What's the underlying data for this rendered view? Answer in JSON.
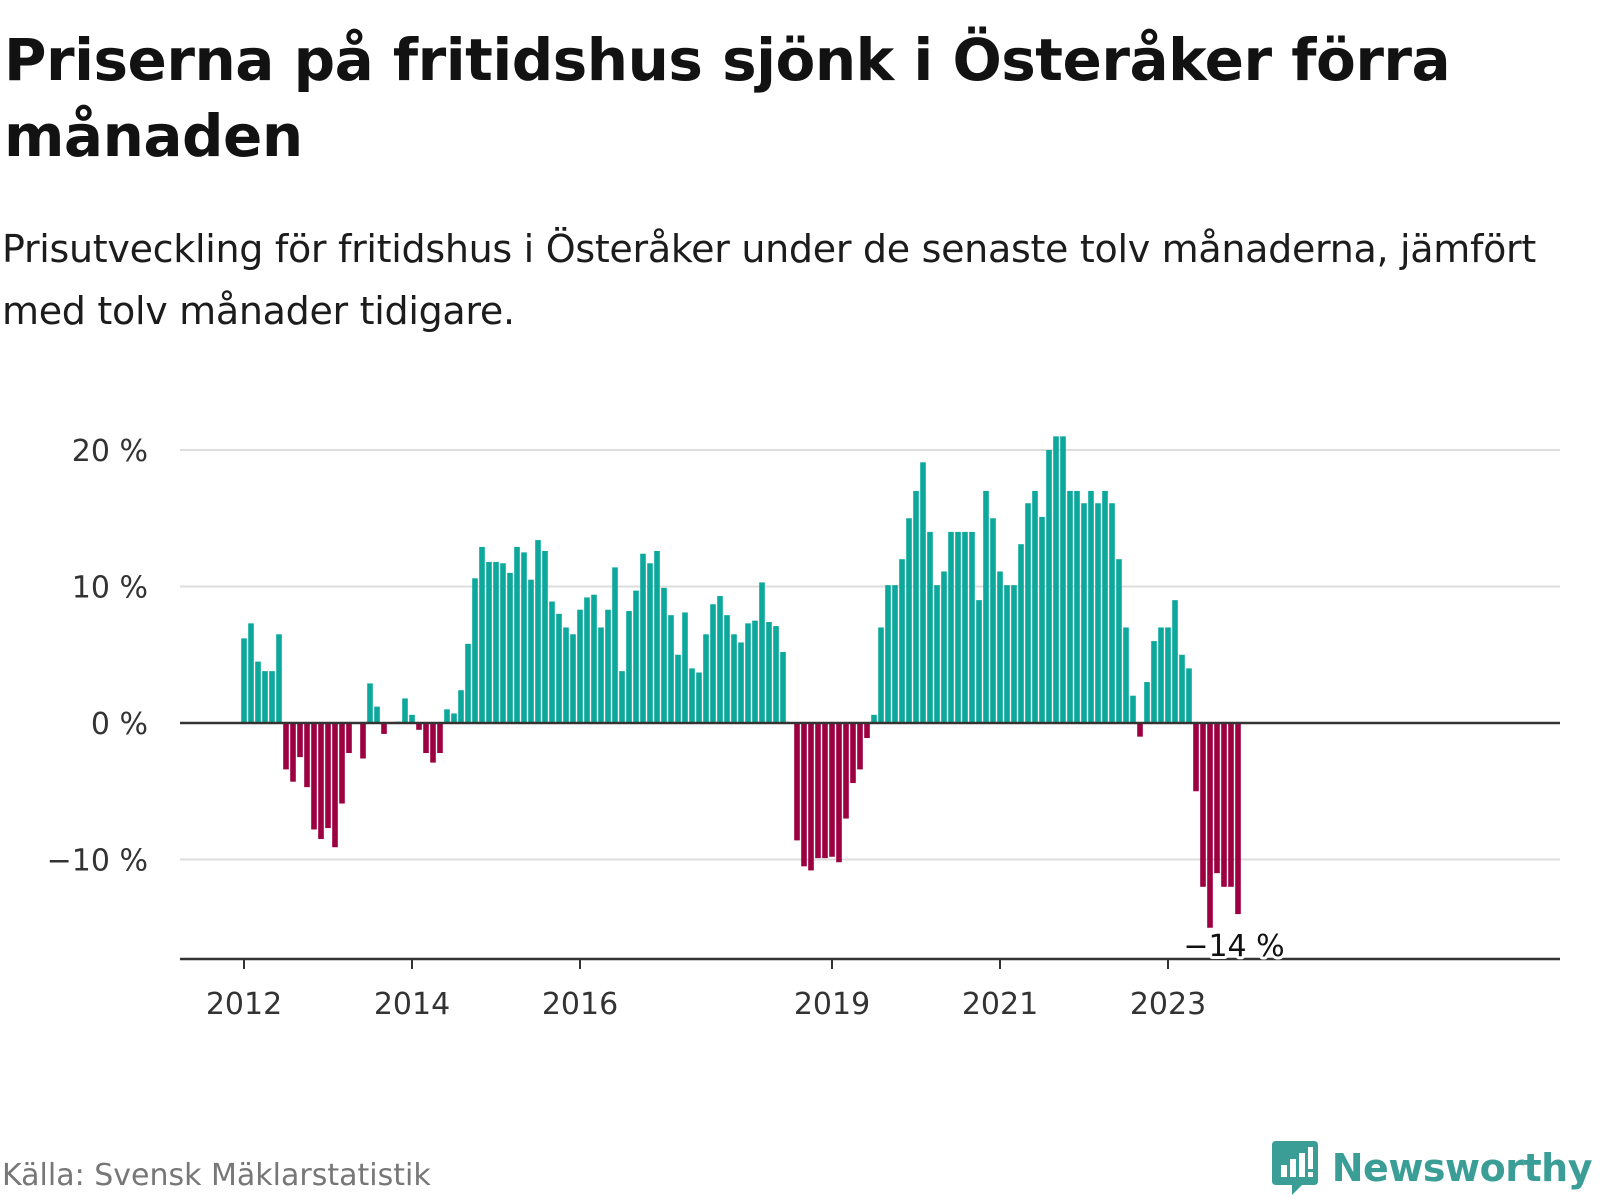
{
  "header": {
    "title": "Priserna på fritidshus sjönk i Österåker förra månaden",
    "subtitle": "Prisutveckling för fritidshus i Österåker under de senaste tolv månaderna, jämfört med tolv månader tidigare."
  },
  "footer": {
    "source": "Källa: Svensk Mäklarstatistik",
    "brand": "Newsworthy"
  },
  "colors": {
    "positive": "#0da89c",
    "negative": "#9c0040",
    "grid": "#dddddd",
    "zero_line": "#333333",
    "brand": "#3a9e96"
  },
  "icons": {
    "logo": "newsworthy-logo-icon"
  },
  "chart_data": {
    "type": "bar",
    "title": "Priserna på fritidshus sjönk i Österåker förra månaden",
    "xlabel": "",
    "ylabel": "",
    "unit": "%",
    "ylim": [
      -17,
      21
    ],
    "yticks": [
      -10,
      0,
      10,
      20
    ],
    "ytick_labels": [
      "−10 %",
      "0 %",
      "10 %",
      "20 %"
    ],
    "xtick_labels": [
      {
        "label": "2012",
        "month_index": 0
      },
      {
        "label": "2014",
        "month_index": 24
      },
      {
        "label": "2016",
        "month_index": 48
      },
      {
        "label": "2019",
        "month_index": 84
      },
      {
        "label": "2021",
        "month_index": 108
      },
      {
        "label": "2023",
        "month_index": 132
      }
    ],
    "start": "2012-01",
    "end": "2023-11",
    "annotation": {
      "label": "−14 %",
      "month_index": 142,
      "value": -14
    },
    "values": [
      6.2,
      7.3,
      4.5,
      3.8,
      3.8,
      6.5,
      -3.4,
      -4.3,
      -2.5,
      -4.7,
      -7.8,
      -8.5,
      -7.7,
      -9.1,
      -5.9,
      -2.2,
      null,
      -2.6,
      2.9,
      1.2,
      -0.8,
      null,
      0.1,
      1.8,
      0.6,
      -0.5,
      -2.2,
      -2.9,
      -2.2,
      1.0,
      0.7,
      2.4,
      5.8,
      10.6,
      12.9,
      11.8,
      11.8,
      11.7,
      11.0,
      12.9,
      12.5,
      10.5,
      13.4,
      12.6,
      8.9,
      8.0,
      7.0,
      6.5,
      8.3,
      9.2,
      9.4,
      7.0,
      8.3,
      11.4,
      3.8,
      8.2,
      9.7,
      12.4,
      11.7,
      12.6,
      9.9,
      7.9,
      5.0,
      8.1,
      4.0,
      3.7,
      6.5,
      8.7,
      9.3,
      7.9,
      6.5,
      5.9,
      7.3,
      7.5,
      10.3,
      7.4,
      7.1,
      5.2,
      null,
      -8.6,
      -10.5,
      -10.8,
      -9.9,
      -9.9,
      -9.8,
      -10.2,
      -7.0,
      -4.4,
      -3.4,
      -1.1,
      0.6,
      7.0,
      10.1,
      10.1,
      12.0,
      15.0,
      17.0,
      19.1,
      14.0,
      10.1,
      11.1,
      14.0,
      14.0,
      14.0,
      14.0,
      9.0,
      17.0,
      15.0,
      11.1,
      10.1,
      10.1,
      13.1,
      16.1,
      17.0,
      15.1,
      20.0,
      21.0,
      21.0,
      17.0,
      17.0,
      16.1,
      17.0,
      16.1,
      17.0,
      16.1,
      12.0,
      7.0,
      2.0,
      -1.0,
      3.0,
      6.0,
      7.0,
      7.0,
      9.0,
      5.0,
      4.0,
      -5.0,
      -12.0,
      -15.0,
      -11.0,
      -12.0,
      -12.0,
      -14.0
    ]
  }
}
